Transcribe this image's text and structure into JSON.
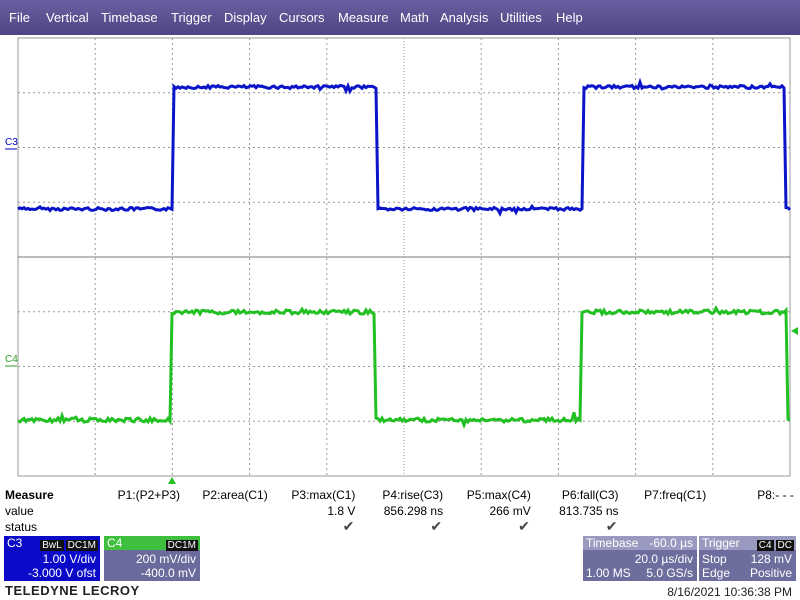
{
  "menu": [
    "File",
    "Vertical",
    "Timebase",
    "Trigger",
    "Display",
    "Cursors",
    "Measure",
    "Math",
    "Analysis",
    "Utilities",
    "Help"
  ],
  "grid": {
    "channel_labels": [
      "C3",
      "C4"
    ]
  },
  "measure": {
    "title": "Measure",
    "row_labels": [
      "value",
      "status"
    ],
    "params": [
      {
        "name": "P1:(P2+P3)"
      },
      {
        "name": "P2:area(C1)"
      },
      {
        "name": "P3:max(C1)",
        "value": "1.8 V",
        "checked": true
      },
      {
        "name": "P4:rise(C3)",
        "value": "856.298 ns",
        "checked": true
      },
      {
        "name": "P5:max(C4)",
        "value": "266 mV",
        "checked": true
      },
      {
        "name": "P6:fall(C3)",
        "value": "813.735 ns",
        "checked": true
      },
      {
        "name": "P7:freq(C1)"
      },
      {
        "name": "P8:- - -"
      }
    ]
  },
  "channels": [
    {
      "label": "C3",
      "badges": [
        "BwL",
        "DC1M"
      ],
      "lines": [
        "1.00 V/div",
        "-3.000 V ofst"
      ]
    },
    {
      "label": "C4",
      "badges": [
        "DC1M"
      ],
      "lines": [
        "200 mV/div",
        "-400.0 mV"
      ]
    }
  ],
  "timebase": {
    "title": "Timebase",
    "offset": "-60.0 µs",
    "per_div": "20.0 µs/div",
    "samples": "1.00 MS",
    "rate": "5.0 GS/s"
  },
  "trigger": {
    "title": "Trigger",
    "source": "C4",
    "coupling": "DC",
    "mode": "Stop",
    "level": "128 mV",
    "type": "Edge",
    "slope": "Positive"
  },
  "footer": {
    "brand": "TELEDYNE LECROY",
    "timestamp": "8/16/2021 10:36:38 PM"
  }
}
